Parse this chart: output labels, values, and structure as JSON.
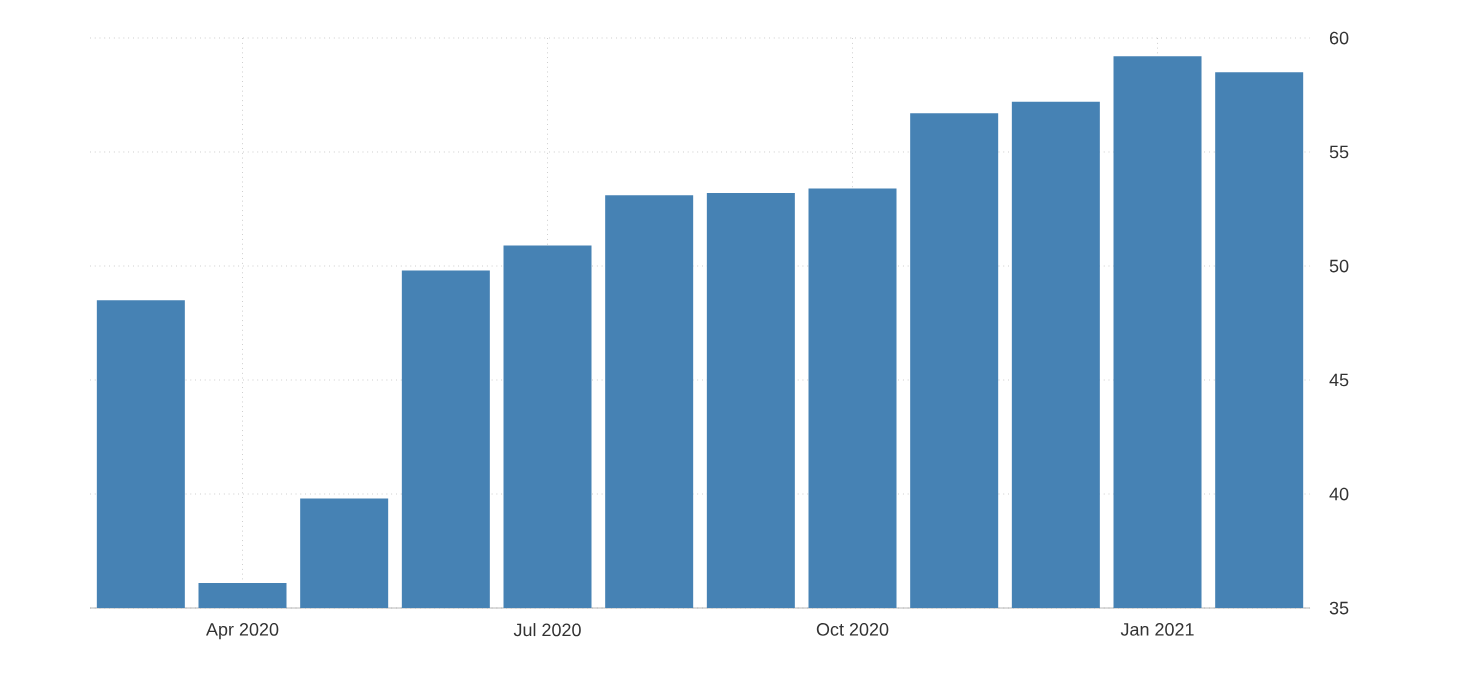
{
  "chart_data": {
    "type": "bar",
    "categories": [
      null,
      "Apr 2020",
      null,
      null,
      "Jul 2020",
      null,
      null,
      "Oct 2020",
      null,
      null,
      "Jan 2021",
      null
    ],
    "values": [
      48.5,
      36.1,
      39.8,
      49.8,
      50.9,
      53.1,
      53.2,
      53.4,
      56.7,
      57.2,
      59.2,
      58.5
    ],
    "color": "#4682b4",
    "ylim": [
      35,
      60
    ],
    "yticks": [
      35,
      40,
      45,
      50,
      55,
      60
    ],
    "grid": true
  }
}
